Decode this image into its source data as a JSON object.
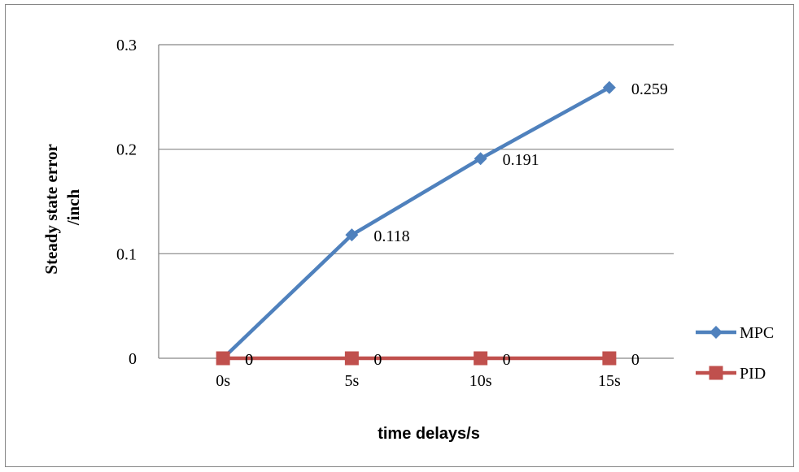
{
  "chart_data": {
    "type": "line",
    "categories": [
      "0s",
      "5s",
      "10s",
      "15s"
    ],
    "series": [
      {
        "name": "MPC",
        "values": [
          0,
          0.118,
          0.191,
          0.259
        ],
        "data_labels": [
          "0",
          "0.118",
          "0.191",
          "0.259"
        ],
        "color": "#4F81BD",
        "marker": "diamond"
      },
      {
        "name": "PID",
        "values": [
          0,
          0,
          0,
          0
        ],
        "data_labels": [
          "0",
          "0",
          "0",
          "0"
        ],
        "color": "#C0504D",
        "marker": "square"
      }
    ],
    "xlabel": "time delays/s",
    "ylabel_lines": [
      "Steady state error",
      "/inch"
    ],
    "ylim": [
      0,
      0.3
    ],
    "yticks": [
      "0",
      "0.1",
      "0.2",
      "0.3"
    ],
    "grid": true,
    "legend_position": "right"
  }
}
